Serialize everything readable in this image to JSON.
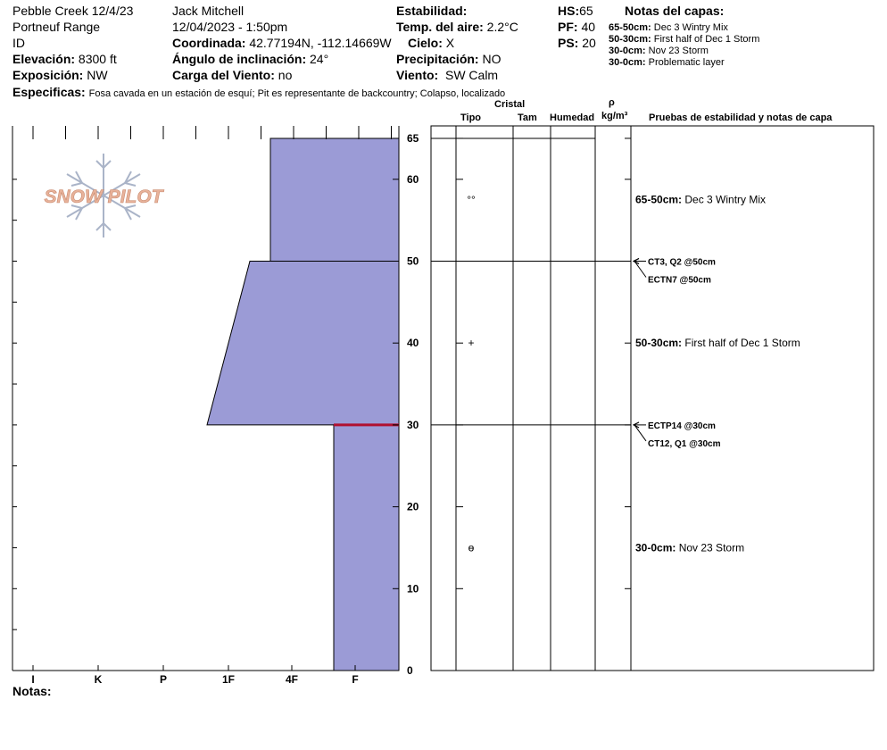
{
  "header": {
    "location": "Pebble Creek 12/4/23",
    "range": "Portneuf Range",
    "state": "ID",
    "elevation_label": "Elevación:",
    "elevation_value": "8300 ft",
    "aspect_label": "Exposición:",
    "aspect_value": "NW",
    "observer": "Jack Mitchell",
    "datetime": "12/04/2023 - 1:50pm",
    "coord_label": "Coordinada:",
    "coord_value": "42.77194N, -112.14669W",
    "slope_label": "Ángulo de inclinación:",
    "slope_value": "24°",
    "wind_load_label": "Carga del Viento:",
    "wind_load_value": "no",
    "stability_label": "Estabilidad:",
    "air_temp_label": "Temp. del aire:",
    "air_temp_value": "2.2°C",
    "sky_label": "Cielo:",
    "sky_value": "X",
    "precip_label": "Precipitación:",
    "precip_value": "NO",
    "wind_label": "Viento:",
    "wind_value": "SW Calm",
    "hs_label": "HS:",
    "hs_value": "65",
    "pf_label": "PF:",
    "pf_value": "40",
    "ps_label": "PS:",
    "ps_value": "20",
    "layer_notes_title": "Notas del capas:",
    "layer_notes": [
      {
        "range": "65-50cm:",
        "text": "Dec 3 Wintry Mix"
      },
      {
        "range": "50-30cm:",
        "text": "First half of Dec 1 Storm"
      },
      {
        "range": "30-0cm:",
        "text": "Nov 23 Storm"
      },
      {
        "range": "30-0cm:",
        "text": "Problematic layer"
      }
    ],
    "specifics_label": "Especificas:",
    "specifics_value": "Fosa cavada en un estación de esquí; Pit es representante de backcountry; Colapso, localizado"
  },
  "logo_text": "SNOW PILOT",
  "columns": {
    "crystal": "Cristal",
    "type": "Tipo",
    "size": "Tam",
    "moisture": "Humedad",
    "rho": "ρ",
    "density_unit": "kg/m³",
    "tests": "Pruebas de estabilidad y notas de capa"
  },
  "hardness_ticks": [
    "I",
    "K",
    "P",
    "1F",
    "4F",
    "F"
  ],
  "depth_ticks": [
    "0",
    "10",
    "20",
    "30",
    "40",
    "50",
    "60",
    "65"
  ],
  "layers": [
    {
      "top": 65,
      "bottom": 50,
      "hardness_top": "4F+",
      "hardness_bottom": "4F+",
      "grain": "°°"
    },
    {
      "top": 50,
      "bottom": 30,
      "hardness_top": "1F-",
      "hardness_bottom": "1F+",
      "grain": "+"
    },
    {
      "top": 30,
      "bottom": 0,
      "hardness_top": "F+",
      "hardness_bottom": "F+",
      "grain": "ɵ"
    }
  ],
  "weak_layer_depth": 30,
  "layer_comments": [
    {
      "range": "65-50cm:",
      "text": "Dec 3 Wintry Mix"
    },
    {
      "range": "50-30cm:",
      "text": "First half of Dec 1 Storm"
    },
    {
      "range": "30-0cm:",
      "text": "Nov 23 Storm"
    }
  ],
  "tests": [
    {
      "depth": 50,
      "labels": [
        "CT3, Q2 @50cm",
        "ECTN7 @50cm"
      ]
    },
    {
      "depth": 30,
      "labels": [
        "ECTP14 @30cm",
        "CT12, Q1 @30cm"
      ]
    }
  ],
  "notes_label": "Notas:",
  "colors": {
    "layer_fill": "#9b9bd6",
    "weak_layer": "#b01030",
    "logo": "#e8b29a",
    "flake": "#aab4c8"
  }
}
